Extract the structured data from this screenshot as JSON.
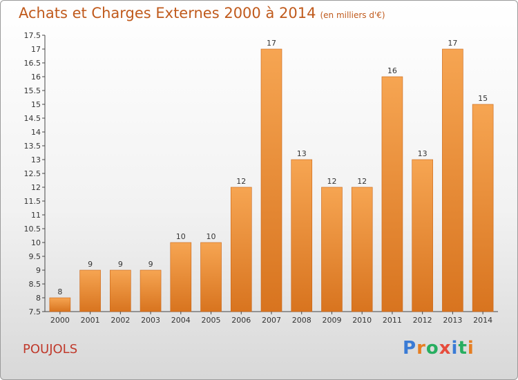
{
  "header": {
    "title": "Achats et Charges Externes 2000 à 2014",
    "subtitle": "(en milliers d'€)"
  },
  "footer": {
    "commune": "POUJOLS",
    "brand": "Proxiti",
    "brand_letters": [
      {
        "ch": "P",
        "color": "#3a7bd5"
      },
      {
        "ch": "r",
        "color": "#e67e22"
      },
      {
        "ch": "o",
        "color": "#27ae60"
      },
      {
        "ch": "x",
        "color": "#e74c3c"
      },
      {
        "ch": "i",
        "color": "#3a7bd5"
      },
      {
        "ch": "t",
        "color": "#27ae60"
      },
      {
        "ch": "i",
        "color": "#e67e22"
      }
    ]
  },
  "chart_data": {
    "type": "bar",
    "title": "Achats et Charges Externes 2000 à 2014",
    "subtitle": "(en milliers d'€)",
    "categories": [
      "2000",
      "2001",
      "2002",
      "2003",
      "2004",
      "2005",
      "2006",
      "2007",
      "2008",
      "2009",
      "2010",
      "2011",
      "2012",
      "2013",
      "2014"
    ],
    "values": [
      8,
      9,
      9,
      9,
      10,
      10,
      12,
      17,
      13,
      12,
      12,
      16,
      13,
      17,
      15
    ],
    "data_labels": [
      "8",
      "9",
      "9",
      "9",
      "10",
      "10",
      "12",
      "17",
      "13",
      "12",
      "12",
      "16",
      "13",
      "17",
      "15"
    ],
    "ylim": [
      7.5,
      17.5
    ],
    "yticks": [
      "7.5",
      "8",
      "8.5",
      "9",
      "9.5",
      "10",
      "10.5",
      "11",
      "11.5",
      "12",
      "12.5",
      "13",
      "13.5",
      "14",
      "14.5",
      "15",
      "15.5",
      "16",
      "16.5",
      "17",
      "17.5"
    ],
    "grid": false,
    "legend": "none",
    "bar_color_top": "#f6a552",
    "bar_color_bottom": "#d8741f",
    "bar_edge": "#c96518"
  }
}
